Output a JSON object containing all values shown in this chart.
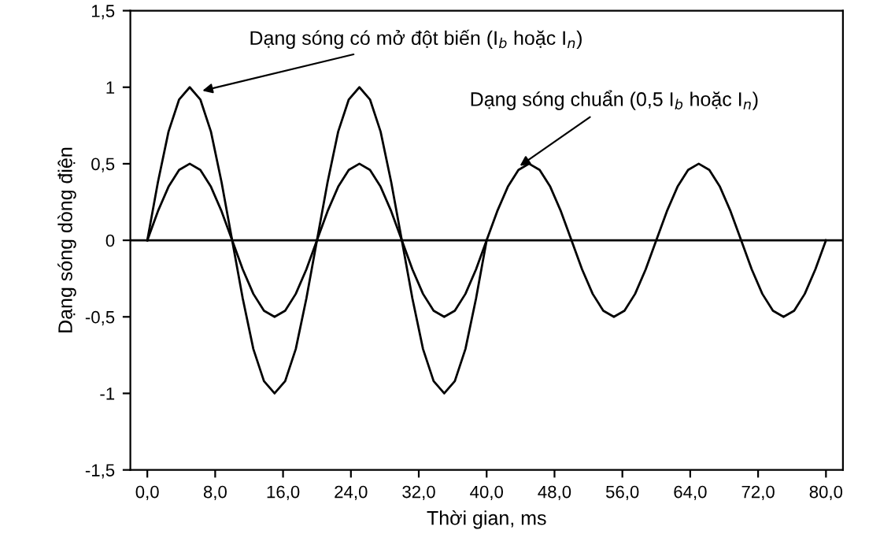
{
  "chart_data": {
    "type": "line",
    "xlabel": "Thời gian, ms",
    "ylabel": "Dạng sóng dòng điện",
    "xlim": [
      -2,
      82
    ],
    "ylim": [
      -1.5,
      1.5
    ],
    "xticks": [
      {
        "value": 0,
        "label": "0,0"
      },
      {
        "value": 8,
        "label": "8,0"
      },
      {
        "value": 16,
        "label": "16,0"
      },
      {
        "value": 24,
        "label": "24,0"
      },
      {
        "value": 32,
        "label": "32,0"
      },
      {
        "value": 40,
        "label": "40,0"
      },
      {
        "value": 48,
        "label": "48,0"
      },
      {
        "value": 56,
        "label": "56,0"
      },
      {
        "value": 64,
        "label": "64,0"
      },
      {
        "value": 72,
        "label": "72,0"
      },
      {
        "value": 80,
        "label": "80,0"
      }
    ],
    "yticks": [
      {
        "value": -1.5,
        "label": "-1,5"
      },
      {
        "value": -1,
        "label": "-1"
      },
      {
        "value": -0.5,
        "label": "-0,5"
      },
      {
        "value": 0,
        "label": "0"
      },
      {
        "value": 0.5,
        "label": "0,5"
      },
      {
        "value": 1,
        "label": "1"
      },
      {
        "value": 1.5,
        "label": "1,5"
      }
    ],
    "grid": false,
    "marker": "none",
    "line_style": "solid",
    "ref_lines": [
      {
        "axis": "y",
        "value": 0,
        "color": "#000000"
      }
    ],
    "series": [
      {
        "color": "#000000",
        "x": [
          0,
          1.25,
          2.5,
          3.75,
          5,
          6.25,
          7.5,
          8.75,
          10,
          11.25,
          12.5,
          13.75,
          15,
          16.25,
          17.5,
          18.75,
          20,
          21.25,
          22.5,
          23.75,
          25,
          26.25,
          27.5,
          28.75,
          30,
          31.25,
          32.5,
          33.75,
          35,
          36.25,
          37.5,
          38.75,
          40
        ],
        "values": [
          0,
          0.38,
          0.71,
          0.92,
          1,
          0.92,
          0.71,
          0.38,
          0,
          -0.38,
          -0.71,
          -0.92,
          -1,
          -0.92,
          -0.71,
          -0.38,
          0,
          0.38,
          0.71,
          0.92,
          1,
          0.92,
          0.71,
          0.38,
          0,
          -0.38,
          -0.71,
          -0.92,
          -1,
          -0.92,
          -0.71,
          -0.38,
          0
        ]
      },
      {
        "color": "#000000",
        "x": [
          0,
          1.25,
          2.5,
          3.75,
          5,
          6.25,
          7.5,
          8.75,
          10,
          11.25,
          12.5,
          13.75,
          15,
          16.25,
          17.5,
          18.75,
          20,
          21.25,
          22.5,
          23.75,
          25,
          26.25,
          27.5,
          28.75,
          30,
          31.25,
          32.5,
          33.75,
          35,
          36.25,
          37.5,
          38.75,
          40,
          41.25,
          42.5,
          43.75,
          45,
          46.25,
          47.5,
          48.75,
          50,
          51.25,
          52.5,
          53.75,
          55,
          56.25,
          57.5,
          58.75,
          60,
          61.25,
          62.5,
          63.75,
          65,
          66.25,
          67.5,
          68.75,
          70,
          71.25,
          72.5,
          73.75,
          75,
          76.25,
          77.5,
          78.75,
          80
        ],
        "values": [
          0,
          0.19,
          0.35,
          0.46,
          0.5,
          0.46,
          0.35,
          0.19,
          0,
          -0.19,
          -0.35,
          -0.46,
          -0.5,
          -0.46,
          -0.35,
          -0.19,
          0,
          0.19,
          0.35,
          0.46,
          0.5,
          0.46,
          0.35,
          0.19,
          0,
          -0.19,
          -0.35,
          -0.46,
          -0.5,
          -0.46,
          -0.35,
          -0.19,
          0,
          0.19,
          0.35,
          0.46,
          0.5,
          0.46,
          0.35,
          0.19,
          0,
          -0.19,
          -0.35,
          -0.46,
          -0.5,
          -0.46,
          -0.35,
          -0.19,
          0,
          0.19,
          0.35,
          0.46,
          0.5,
          0.46,
          0.35,
          0.19,
          0,
          -0.19,
          -0.35,
          -0.46,
          -0.5,
          -0.46,
          -0.35,
          -0.19,
          0
        ]
      }
    ],
    "annotations": [
      {
        "text": "Dạng sóng có mở đột biến (I$_{b}$ hoặc I$_{n}$)",
        "x": 6,
        "y": 0.97
      },
      {
        "text": "Dạng sóng chuẩn (0,5 I$_{b}$ hoặc I$_{n}$)",
        "x": 43.5,
        "y": 0.47
      }
    ]
  }
}
